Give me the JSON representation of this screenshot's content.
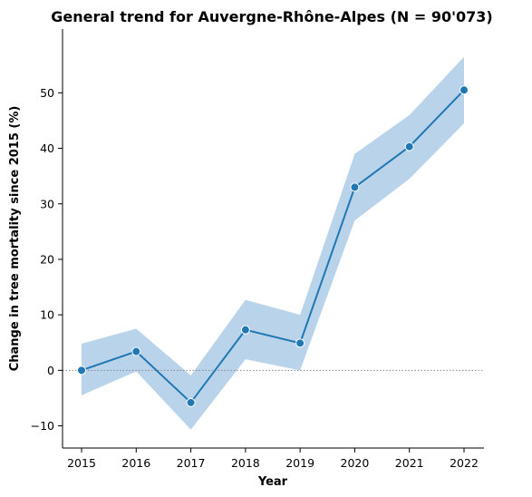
{
  "chart_data": {
    "type": "line",
    "title": "General trend for Auvergne-Rhône-Alpes  (N = 90'073)",
    "xlabel": "Year",
    "ylabel": "Change in tree mortality since 2015 (%)",
    "categories": [
      "2015",
      "2016",
      "2017",
      "2018",
      "2019",
      "2020",
      "2021",
      "2022"
    ],
    "series": [
      {
        "values": [
          0.0,
          3.4,
          -5.8,
          7.3,
          4.9,
          33.0,
          40.3,
          50.5
        ],
        "ci_lower": [
          -4.5,
          -0.2,
          -10.7,
          2.0,
          0.0,
          27.0,
          34.5,
          44.5
        ],
        "ci_upper": [
          4.8,
          7.5,
          -0.9,
          12.7,
          10.0,
          39.0,
          46.0,
          56.5
        ],
        "color": "#1f77b4",
        "band_color": "#b9d4ea"
      }
    ],
    "yticks": [
      -10,
      0,
      10,
      20,
      30,
      40,
      50
    ],
    "ylim": [
      -14,
      61.5
    ],
    "reference_line": {
      "y": 0,
      "style": "dotted",
      "color": "#888888"
    },
    "grid": false,
    "legend": "none"
  }
}
